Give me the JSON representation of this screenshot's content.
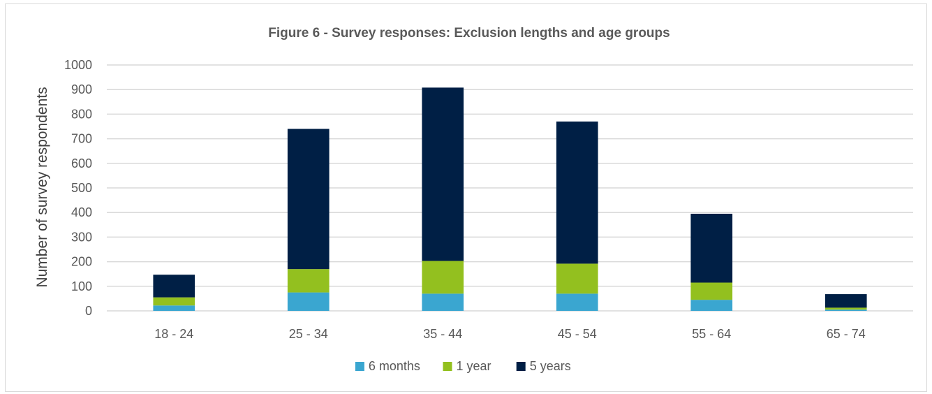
{
  "chart_data": {
    "type": "bar",
    "stacked": true,
    "title": "Figure 6 - Survey responses: Exclusion lengths and age groups",
    "xlabel": "",
    "ylabel": "Number of survey respondents",
    "ylim": [
      0,
      1000
    ],
    "yticks": [
      0,
      100,
      200,
      300,
      400,
      500,
      600,
      700,
      800,
      900,
      1000
    ],
    "categories": [
      "18 - 24",
      "25 - 34",
      "35 - 44",
      "45 - 54",
      "55 - 64",
      "65 - 74"
    ],
    "series": [
      {
        "name": "6 months",
        "color": "#3aa6d0",
        "values": [
          22,
          75,
          70,
          70,
          45,
          5
        ]
      },
      {
        "name": "1 year",
        "color": "#93c01f",
        "values": [
          33,
          95,
          133,
          122,
          70,
          8
        ]
      },
      {
        "name": "5 years",
        "color": "#001f45",
        "values": [
          92,
          570,
          705,
          578,
          280,
          55
        ]
      }
    ],
    "grid": true,
    "gridline_color": "#d9d9d9",
    "legend_position": "bottom"
  }
}
